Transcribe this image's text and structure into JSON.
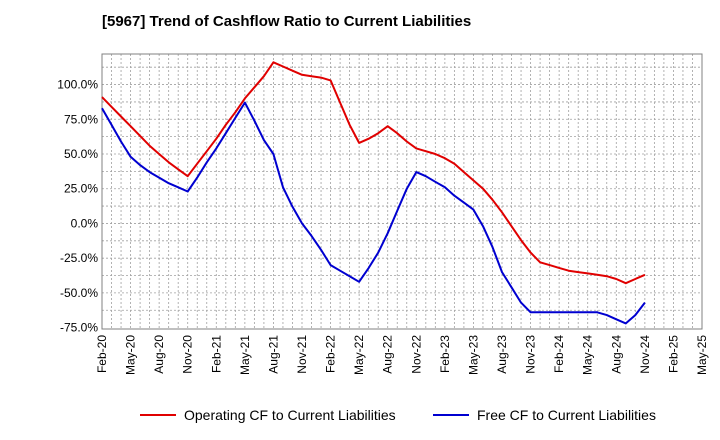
{
  "chart_data": {
    "type": "line",
    "title": "[5967]  Trend of Cashflow Ratio to Current Liabilities",
    "xlabel": "",
    "ylabel": "",
    "categories": [
      "Feb-20",
      "May-20",
      "Aug-20",
      "Nov-20",
      "Feb-21",
      "May-21",
      "Aug-21",
      "Nov-21",
      "Feb-22",
      "May-22",
      "Aug-22",
      "Nov-22",
      "Feb-23",
      "May-23",
      "Aug-23",
      "Nov-23",
      "Feb-24",
      "May-24",
      "Aug-24",
      "Nov-24",
      "Feb-25",
      "May-25"
    ],
    "x_ticks": [
      "Feb-20",
      "May-20",
      "Aug-20",
      "Nov-20",
      "Feb-21",
      "May-21",
      "Aug-21",
      "Nov-21",
      "Feb-22",
      "May-22",
      "Aug-22",
      "Nov-22",
      "Feb-23",
      "May-23",
      "Aug-23",
      "Nov-23",
      "Feb-24",
      "May-24",
      "Aug-24",
      "Nov-24",
      "Feb-25",
      "May-25"
    ],
    "y_ticks": [
      "100.0%",
      "75.0%",
      "50.0%",
      "25.0%",
      "0.0%",
      "-25.0%",
      "-50.0%",
      "-75.0%"
    ],
    "y_tick_values": [
      100,
      75,
      50,
      25,
      0,
      -25,
      -50,
      -75
    ],
    "ylim": [
      -76,
      122
    ],
    "grid": true,
    "legend_position": "bottom",
    "series": [
      {
        "name": "Operating CF to Current Liabilities",
        "color": "#e00000",
        "x": [
          "Feb-20",
          "Mar-20",
          "Apr-20",
          "May-20",
          "Jun-20",
          "Jul-20",
          "Aug-20",
          "Sep-20",
          "Oct-20",
          "Nov-20",
          "Dec-20",
          "Jan-21",
          "Feb-21",
          "Mar-21",
          "Apr-21",
          "May-21",
          "Jun-21",
          "Jul-21",
          "Aug-21",
          "Sep-21",
          "Oct-21",
          "Nov-21",
          "Dec-21",
          "Jan-22",
          "Feb-22",
          "Mar-22",
          "Apr-22",
          "May-22",
          "Jun-22",
          "Jul-22",
          "Aug-22",
          "Sep-22",
          "Oct-22",
          "Nov-22",
          "Dec-22",
          "Jan-23",
          "Feb-23",
          "Mar-23",
          "Apr-23",
          "May-23",
          "Jun-23",
          "Jul-23",
          "Aug-23",
          "Sep-23",
          "Oct-23",
          "Nov-23",
          "Dec-23",
          "Jan-24",
          "Feb-24",
          "Mar-24",
          "Apr-24",
          "May-24",
          "Jun-24",
          "Jul-24",
          "Aug-24",
          "Sep-24",
          "Oct-24",
          "Nov-24"
        ],
        "values": [
          91,
          84,
          77,
          70,
          63,
          56,
          50,
          44,
          39,
          34,
          43,
          52,
          61,
          71,
          80,
          90,
          98,
          106,
          116,
          113,
          110,
          107,
          106,
          105,
          103,
          87,
          71,
          58,
          61,
          65,
          70,
          65,
          59,
          54,
          52,
          50,
          47,
          43,
          37,
          31,
          25,
          17,
          8,
          -2,
          -12,
          -21,
          -28,
          -30,
          -32,
          -34,
          -35,
          -36,
          -37,
          -38,
          -40,
          -43,
          -40,
          -37
        ]
      },
      {
        "name": "Free CF to Current Liabilities",
        "color": "#0000d0",
        "x": [
          "Feb-20",
          "Mar-20",
          "Apr-20",
          "May-20",
          "Jun-20",
          "Jul-20",
          "Aug-20",
          "Sep-20",
          "Oct-20",
          "Nov-20",
          "Dec-20",
          "Jan-21",
          "Feb-21",
          "Mar-21",
          "Apr-21",
          "May-21",
          "Jun-21",
          "Jul-21",
          "Aug-21",
          "Sep-21",
          "Oct-21",
          "Nov-21",
          "Dec-21",
          "Jan-22",
          "Feb-22",
          "Mar-22",
          "Apr-22",
          "May-22",
          "Jun-22",
          "Jul-22",
          "Aug-22",
          "Sep-22",
          "Oct-22",
          "Nov-22",
          "Dec-22",
          "Jan-23",
          "Feb-23",
          "Mar-23",
          "Apr-23",
          "May-23",
          "Jun-23",
          "Jul-23",
          "Aug-23",
          "Sep-23",
          "Oct-23",
          "Nov-23",
          "Dec-23",
          "Jan-24",
          "Feb-24",
          "Mar-24",
          "Apr-24",
          "May-24",
          "Jun-24",
          "Jul-24",
          "Aug-24",
          "Sep-24",
          "Oct-24",
          "Nov-24"
        ],
        "values": [
          83,
          71,
          59,
          48,
          42,
          37,
          33,
          29,
          26,
          23,
          33,
          44,
          54,
          65,
          76,
          87,
          74,
          60,
          50,
          26,
          12,
          0,
          -9,
          -19,
          -30,
          -34,
          -38,
          -42,
          -32,
          -21,
          -7,
          9,
          25,
          37,
          34,
          30,
          26,
          20,
          15,
          10,
          -2,
          -17,
          -35,
          -46,
          -57,
          -64,
          -64,
          -64,
          -64,
          -64,
          -64,
          -64,
          -64,
          -66,
          -69,
          -72,
          -66,
          -57
        ]
      }
    ]
  }
}
